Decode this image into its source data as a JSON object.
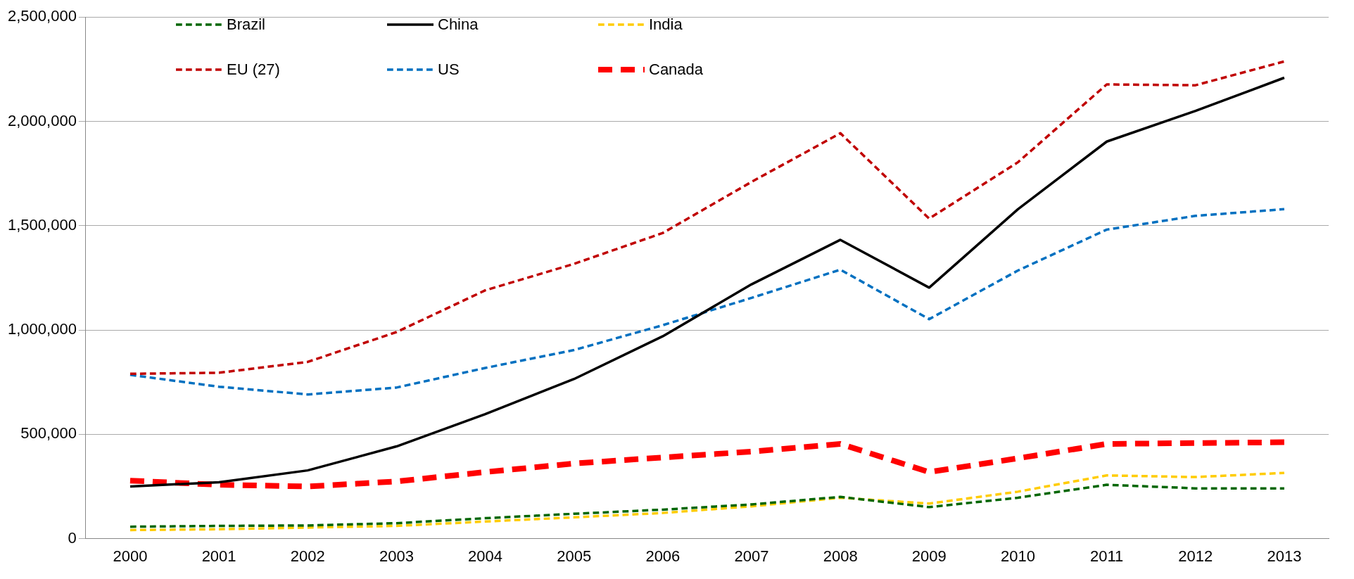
{
  "chart_data": {
    "type": "line",
    "categories": [
      "2000",
      "2001",
      "2002",
      "2003",
      "2004",
      "2005",
      "2006",
      "2007",
      "2008",
      "2009",
      "2010",
      "2011",
      "2012",
      "2013"
    ],
    "ylim": [
      0,
      2500000
    ],
    "yticks": [
      {
        "value": 0,
        "label": "0"
      },
      {
        "value": 500000,
        "label": "500,000"
      },
      {
        "value": 1000000,
        "label": "1,000,000"
      },
      {
        "value": 1500000,
        "label": "1,500,000"
      },
      {
        "value": 2000000,
        "label": "2,000,000"
      },
      {
        "value": 2500000,
        "label": "2,500,000"
      }
    ],
    "grid": "y",
    "legend": "top left",
    "marker": "none",
    "series": [
      {
        "name": "Brazil",
        "color": "#006600",
        "line_style": "dashed",
        "values": [
          57000,
          61000,
          63000,
          74000,
          98000,
          119000,
          139000,
          164000,
          200000,
          151000,
          196000,
          258000,
          241000,
          241000
        ]
      },
      {
        "name": "China",
        "color": "#000000",
        "line_style": "solid",
        "values": [
          250000,
          270000,
          327000,
          442000,
          597000,
          765000,
          970000,
          1219000,
          1432000,
          1203000,
          1579000,
          1903000,
          2050000,
          2209000
        ]
      },
      {
        "name": "India",
        "color": "#ffcc00",
        "line_style": "dashed",
        "values": [
          41000,
          45000,
          53000,
          61000,
          82000,
          102000,
          123000,
          155000,
          196000,
          168000,
          225000,
          303000,
          295000,
          315000
        ]
      },
      {
        "name": "EU (27)",
        "color": "#c00000",
        "line_style": "dashed",
        "values": [
          790000,
          795000,
          847000,
          990000,
          1190000,
          1317000,
          1465000,
          1710000,
          1943000,
          1534000,
          1804000,
          2177000,
          2173000,
          2287000
        ]
      },
      {
        "name": "US",
        "color": "#0070c0",
        "line_style": "dashed",
        "values": [
          785000,
          728000,
          691000,
          724000,
          818000,
          904000,
          1023000,
          1154000,
          1289000,
          1052000,
          1285000,
          1481000,
          1547000,
          1579000
        ]
      },
      {
        "name": "Canada",
        "color": "#ff0000",
        "line_style": "dashed",
        "values": [
          278000,
          258000,
          250000,
          274000,
          319000,
          360000,
          389000,
          417000,
          454000,
          319000,
          385000,
          454000,
          458000,
          462000
        ]
      }
    ]
  }
}
